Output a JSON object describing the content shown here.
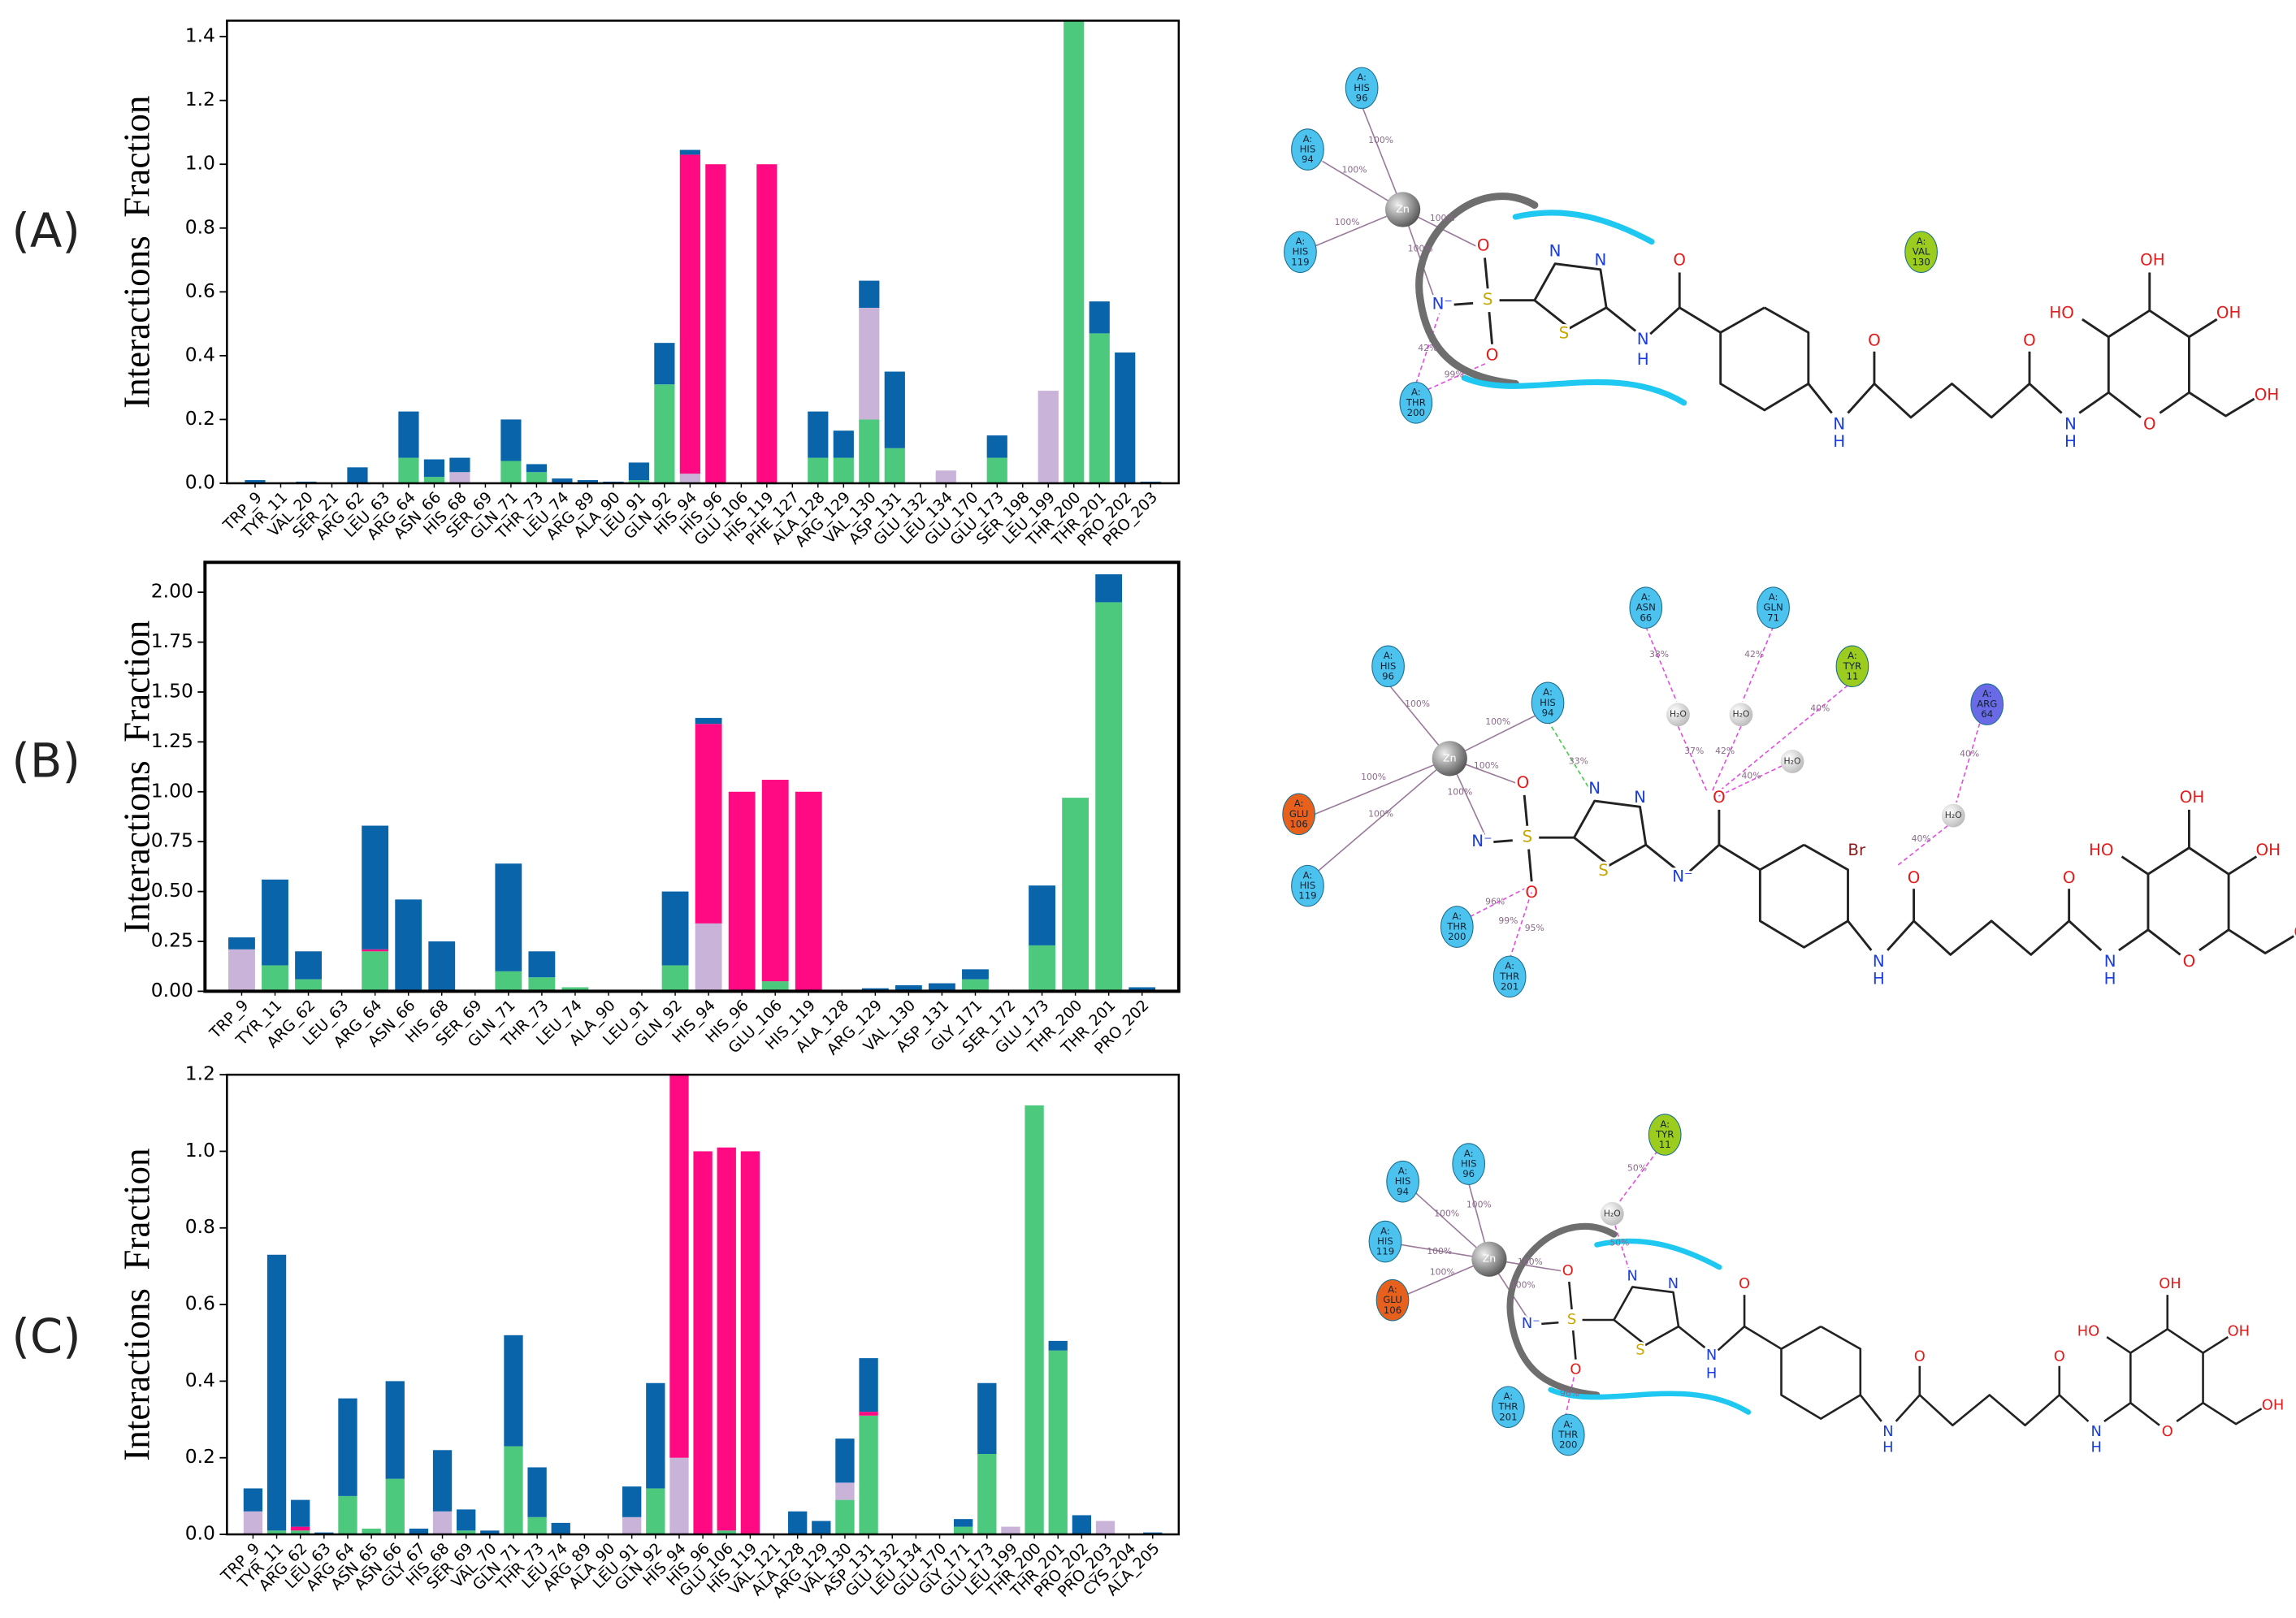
{
  "chart_data": [
    {
      "type": "bar",
      "stacked": true,
      "panel_label": "(A)",
      "y_label": "Interactions  Fraction",
      "categories": [
        "TRP_9",
        "TYR_11",
        "VAL_20",
        "SER_21",
        "ARG_62",
        "LEU_63",
        "ARG_64",
        "ASN_66",
        "HIS_68",
        "SER_69",
        "GLN_71",
        "THR_73",
        "LEU_74",
        "ARG_89",
        "ALA_90",
        "LEU_91",
        "GLN_92",
        "HIS_94",
        "HIS_96",
        "GLU_106",
        "HIS_119",
        "PHE_127",
        "ALA_128",
        "ARG_129",
        "VAL_130",
        "ASP_131",
        "GLU_132",
        "LEU_134",
        "GLU_170",
        "GLU_173",
        "SER_198",
        "LEU_199",
        "THR_200",
        "THR_201",
        "PRO_202",
        "PRO_203"
      ],
      "series": [
        {
          "color": "#4cc97d",
          "values": [
            0,
            0,
            0,
            0,
            0,
            0,
            0.08,
            0.02,
            0,
            0,
            0.07,
            0.035,
            0,
            0,
            0,
            0.01,
            0.31,
            0,
            0,
            0,
            0,
            0,
            0.08,
            0.08,
            0.2,
            0.11,
            0,
            0,
            0,
            0.08,
            0,
            0,
            1.45,
            0.47,
            0,
            0
          ]
        },
        {
          "color": "#c9b3d9",
          "values": [
            0,
            0,
            0,
            0,
            0,
            0,
            0,
            0,
            0.035,
            0,
            0,
            0,
            0,
            0,
            0,
            0,
            0,
            0.03,
            0,
            0,
            0,
            0,
            0,
            0,
            0.35,
            0,
            0,
            0.04,
            0,
            0,
            0,
            0.29,
            0,
            0,
            0,
            0
          ]
        },
        {
          "color": "#ff0a82",
          "values": [
            0,
            0,
            0,
            0,
            0,
            0,
            0,
            0,
            0,
            0,
            0,
            0,
            0,
            0,
            0,
            0,
            0,
            1.0,
            1.0,
            0,
            1.0,
            0,
            0,
            0,
            0,
            0,
            0,
            0,
            0,
            0,
            0,
            0,
            0,
            0,
            0,
            0
          ]
        },
        {
          "color": "#0a64aa",
          "values": [
            0.01,
            0,
            0.005,
            0,
            0.05,
            0,
            0.145,
            0.055,
            0.045,
            0,
            0.13,
            0.025,
            0.015,
            0.01,
            0.005,
            0.055,
            0.13,
            0.015,
            0,
            0,
            0,
            0,
            0.145,
            0.085,
            0.085,
            0.24,
            0,
            0,
            0,
            0.07,
            0,
            0,
            0,
            0.1,
            0.41,
            0.005
          ]
        }
      ],
      "ylim": [
        0,
        1.45
      ],
      "yticks": [
        {
          "value": 0,
          "label": "0.0"
        },
        0.2,
        0.4,
        0.6,
        0.8,
        {
          "value": 1,
          "label": "1.0"
        },
        1.2,
        1.4
      ]
    },
    {
      "type": "bar",
      "stacked": true,
      "panel_label": "(B)",
      "y_label": "Interactions  Fraction",
      "categories": [
        "TRP_9",
        "TYR_11",
        "ARG_62",
        "LEU_63",
        "ARG_64",
        "ASN_66",
        "HIS_68",
        "SER_69",
        "GLN_71",
        "THR_73",
        "LEU_74",
        "ALA_90",
        "LEU_91",
        "GLN_92",
        "HIS_94",
        "HIS_96",
        "GLU_106",
        "HIS_119",
        "ALA_128",
        "ARG_129",
        "VAL_130",
        "ASP_131",
        "GLY_171",
        "SER_172",
        "GLU_173",
        "THR_200",
        "THR_201",
        "PRO_202"
      ],
      "series": [
        {
          "color": "#4cc97d",
          "values": [
            0,
            0.13,
            0.06,
            0,
            0.2,
            0,
            0,
            0,
            0.1,
            0.07,
            0.02,
            0,
            0,
            0.13,
            0,
            0,
            0.05,
            0,
            0,
            0,
            0,
            0,
            0.06,
            0,
            0.23,
            0.97,
            1.95,
            0
          ]
        },
        {
          "color": "#c9b3d9",
          "values": [
            0.21,
            0,
            0,
            0,
            0,
            0,
            0,
            0,
            0,
            0,
            0,
            0,
            0,
            0,
            0.34,
            0,
            0,
            0,
            0,
            0,
            0,
            0,
            0,
            0,
            0,
            0,
            0,
            0
          ]
        },
        {
          "color": "#ff0a82",
          "values": [
            0,
            0,
            0,
            0,
            0.01,
            0,
            0,
            0,
            0,
            0,
            0,
            0,
            0,
            0,
            1.0,
            1.0,
            1.01,
            1.0,
            0,
            0,
            0,
            0,
            0,
            0,
            0,
            0,
            0,
            0
          ]
        },
        {
          "color": "#0a64aa",
          "values": [
            0.06,
            0.43,
            0.14,
            0,
            0.62,
            0.46,
            0.25,
            0,
            0.54,
            0.13,
            0,
            0.005,
            0.005,
            0.37,
            0.03,
            0,
            0,
            0,
            0.005,
            0.015,
            0.03,
            0.04,
            0.05,
            0,
            0.3,
            0,
            0.14,
            0.02
          ]
        }
      ],
      "ylim": [
        0,
        2.15
      ],
      "yticks": [
        {
          "value": 0,
          "label": "0.00"
        },
        0.25,
        {
          "value": 0.5,
          "label": "0.50"
        },
        0.75,
        {
          "value": 1,
          "label": "1.00"
        },
        1.25,
        {
          "value": 1.5,
          "label": "1.50"
        },
        1.75,
        {
          "value": 2,
          "label": "2.00"
        }
      ]
    },
    {
      "type": "bar",
      "stacked": true,
      "panel_label": "(C)",
      "y_label": "Interactions  Fraction",
      "categories": [
        "TRP_9",
        "TYR_11",
        "ARG_62",
        "LEU_63",
        "ARG_64",
        "ASN_65",
        "ASN_66",
        "GLY_67",
        "HIS_68",
        "SER_69",
        "VAL_70",
        "GLN_71",
        "THR_73",
        "LEU_74",
        "ARG_89",
        "ALA_90",
        "LEU_91",
        "GLN_92",
        "HIS_94",
        "HIS_96",
        "GLU_106",
        "HIS_119",
        "VAL_121",
        "ALA_128",
        "ARG_129",
        "VAL_130",
        "ASP_131",
        "GLU_132",
        "LEU_134",
        "GLU_170",
        "GLY_171",
        "GLU_173",
        "LEU_199",
        "THR_200",
        "THR_201",
        "PRO_202",
        "PRO_203",
        "CYS_204",
        "ALA_205"
      ],
      "series": [
        {
          "color": "#4cc97d",
          "values": [
            0,
            0.01,
            0.01,
            0,
            0.1,
            0.015,
            0.145,
            0,
            0,
            0.01,
            0,
            0.23,
            0.045,
            0,
            0,
            0,
            0,
            0.12,
            0,
            0,
            0.01,
            0,
            0,
            0,
            0,
            0.09,
            0.31,
            0,
            0,
            0,
            0.02,
            0.21,
            0,
            1.12,
            0.48,
            0,
            0,
            0,
            0
          ]
        },
        {
          "color": "#c9b3d9",
          "values": [
            0.06,
            0,
            0,
            0,
            0,
            0,
            0,
            0,
            0.06,
            0,
            0,
            0,
            0,
            0,
            0,
            0,
            0.045,
            0,
            0.2,
            0,
            0,
            0,
            0,
            0,
            0,
            0.045,
            0,
            0,
            0,
            0,
            0,
            0,
            0.02,
            0,
            0,
            0,
            0.035,
            0,
            0
          ]
        },
        {
          "color": "#ff0a82",
          "values": [
            0,
            0,
            0.01,
            0,
            0,
            0,
            0,
            0,
            0,
            0,
            0,
            0,
            0,
            0,
            0,
            0,
            0,
            0,
            1.0,
            1.0,
            1.0,
            1.0,
            0,
            0,
            0,
            0,
            0.01,
            0,
            0,
            0,
            0,
            0,
            0,
            0,
            0,
            0,
            0,
            0,
            0
          ]
        },
        {
          "color": "#0a64aa",
          "values": [
            0.06,
            0.72,
            0.07,
            0.005,
            0.255,
            0,
            0.255,
            0.015,
            0.16,
            0.055,
            0.01,
            0.29,
            0.13,
            0.03,
            0,
            0,
            0.08,
            0.275,
            0,
            0,
            0,
            0,
            0,
            0.06,
            0.035,
            0.115,
            0.14,
            0,
            0,
            0,
            0.02,
            0.185,
            0,
            0,
            0.025,
            0.05,
            0,
            0,
            0.005
          ]
        }
      ],
      "ylim": [
        0,
        1.2
      ],
      "yticks": [
        {
          "value": 0,
          "label": "0.0"
        },
        0.2,
        0.4,
        0.6,
        0.8,
        {
          "value": 1,
          "label": "1.0"
        },
        1.2
      ]
    }
  ],
  "diagrams": [
    {
      "metal": "Zn",
      "residues": [
        {
          "chain": "A:",
          "name": "HIS",
          "number": "96"
        },
        {
          "chain": "A:",
          "name": "HIS",
          "number": "94"
        },
        {
          "chain": "A:",
          "name": "HIS",
          "number": "119"
        },
        {
          "chain": "A:",
          "name": "THR",
          "number": "200"
        },
        {
          "chain": "A:",
          "name": "VAL",
          "number": "130"
        }
      ],
      "waters": [],
      "percents": [
        "100%",
        "100%",
        "100%",
        "100%",
        "100%",
        "42%",
        "99%"
      ],
      "atoms": [
        "O",
        "N⁻",
        "S",
        "O",
        "N",
        "N",
        "S",
        "N",
        "H",
        "O",
        "N",
        "H",
        "O",
        "O",
        "N",
        "H",
        "O",
        "OH",
        "HO",
        "OH",
        "OH"
      ]
    },
    {
      "metal": "Zn",
      "residues": [
        {
          "chain": "A:",
          "name": "HIS",
          "number": "96"
        },
        {
          "chain": "A:",
          "name": "HIS",
          "number": "94"
        },
        {
          "chain": "A:",
          "name": "ASN",
          "number": "66"
        },
        {
          "chain": "A:",
          "name": "GLN",
          "number": "71"
        },
        {
          "chain": "A:",
          "name": "TYR",
          "number": "11"
        },
        {
          "chain": "A:",
          "name": "ARG",
          "number": "64"
        },
        {
          "chain": "A:",
          "name": "GLU",
          "number": "106"
        },
        {
          "chain": "A:",
          "name": "HIS",
          "number": "119"
        },
        {
          "chain": "A:",
          "name": "THR",
          "number": "200"
        },
        {
          "chain": "A:",
          "name": "THR",
          "number": "201"
        }
      ],
      "waters": [
        "H₂O",
        "H₂O",
        "H₂O",
        "H₂O"
      ],
      "percents": [
        "100%",
        "100%",
        "100%",
        "100%",
        "100%",
        "100%",
        "33%",
        "38%",
        "42%",
        "40%",
        "37%",
        "42%",
        "40%",
        "40%",
        "40%",
        "96%",
        "99%",
        "95%"
      ],
      "atoms": [
        "O",
        "N⁻",
        "S",
        "O",
        "N",
        "N",
        "S",
        "N⁻",
        "O",
        "N",
        "H",
        "O",
        "O",
        "N",
        "H",
        "O",
        "OH",
        "HO",
        "OH",
        "OH",
        "Br"
      ]
    },
    {
      "metal": "Zn",
      "residues": [
        {
          "chain": "A:",
          "name": "HIS",
          "number": "94"
        },
        {
          "chain": "A:",
          "name": "HIS",
          "number": "96"
        },
        {
          "chain": "A:",
          "name": "HIS",
          "number": "119"
        },
        {
          "chain": "A:",
          "name": "GLU",
          "number": "106"
        },
        {
          "chain": "A:",
          "name": "THR",
          "number": "201"
        },
        {
          "chain": "A:",
          "name": "THR",
          "number": "200"
        },
        {
          "chain": "A:",
          "name": "TYR",
          "number": "11"
        }
      ],
      "waters": [
        "H₂O"
      ],
      "percents": [
        "100%",
        "100%",
        "100%",
        "100%",
        "100%",
        "100%",
        "50%",
        "50%",
        "96%"
      ],
      "atoms": [
        "O",
        "N⁻",
        "S",
        "O",
        "N",
        "N",
        "S",
        "N",
        "H",
        "O",
        "N",
        "H",
        "O",
        "O",
        "N",
        "H",
        "O",
        "OH",
        "HO",
        "OH",
        "OH"
      ]
    }
  ]
}
